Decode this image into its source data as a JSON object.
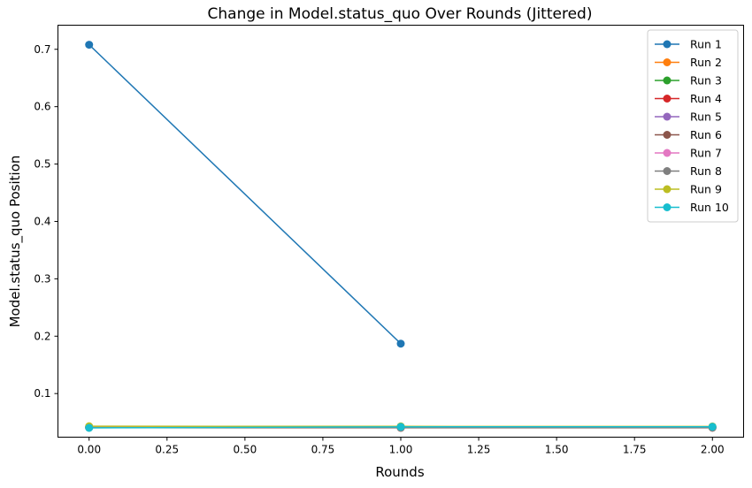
{
  "chart_data": {
    "type": "line",
    "title": "Change in Model.status_quo Over Rounds (Jittered)",
    "xlabel": "Rounds",
    "ylabel": "Model.status_quo Position",
    "xlim": [
      -0.1,
      2.1
    ],
    "ylim": [
      0.024,
      0.742
    ],
    "xticks": [
      0.0,
      0.25,
      0.5,
      0.75,
      1.0,
      1.25,
      1.5,
      1.75,
      2.0
    ],
    "xtick_labels": [
      "0.00",
      "0.25",
      "0.50",
      "0.75",
      "1.00",
      "1.25",
      "1.50",
      "1.75",
      "2.00"
    ],
    "yticks": [
      0.1,
      0.2,
      0.3,
      0.4,
      0.5,
      0.6,
      0.7
    ],
    "ytick_labels": [
      "0.1",
      "0.2",
      "0.3",
      "0.4",
      "0.5",
      "0.6",
      "0.7"
    ],
    "grid": false,
    "legend_position": "top-right",
    "series": [
      {
        "name": "Run 1",
        "color": "#1f77b4",
        "x": [
          0,
          1
        ],
        "y": [
          0.708,
          0.187
        ]
      },
      {
        "name": "Run 2",
        "color": "#ff7f0e",
        "x": [
          0,
          1,
          2
        ],
        "y": [
          0.0415,
          0.0412,
          0.0413
        ]
      },
      {
        "name": "Run 3",
        "color": "#2ca02c",
        "x": [
          0,
          1,
          2
        ],
        "y": [
          0.0418,
          0.0416,
          0.0414
        ]
      },
      {
        "name": "Run 4",
        "color": "#d62728",
        "x": [
          0,
          1,
          2
        ],
        "y": [
          0.041,
          0.0409,
          0.0411
        ]
      },
      {
        "name": "Run 5",
        "color": "#9467bd",
        "x": [
          0,
          1,
          2
        ],
        "y": [
          0.0412,
          0.0414,
          0.041
        ]
      },
      {
        "name": "Run 6",
        "color": "#8c564b",
        "x": [
          0,
          1,
          2
        ],
        "y": [
          0.0405,
          0.0403,
          0.0404
        ]
      },
      {
        "name": "Run 7",
        "color": "#e377c2",
        "x": [
          0,
          1,
          2
        ],
        "y": [
          0.042,
          0.0418,
          0.0419
        ]
      },
      {
        "name": "Run 8",
        "color": "#7f7f7f",
        "x": [
          0,
          1,
          2
        ],
        "y": [
          0.0407,
          0.0405,
          0.0406
        ]
      },
      {
        "name": "Run 9",
        "color": "#bcbd22",
        "x": [
          0,
          1,
          2
        ],
        "y": [
          0.043,
          0.0428,
          0.0426
        ]
      },
      {
        "name": "Run 10",
        "color": "#17becf",
        "x": [
          0,
          1,
          2
        ],
        "y": [
          0.0402,
          0.042,
          0.0422
        ]
      }
    ]
  }
}
